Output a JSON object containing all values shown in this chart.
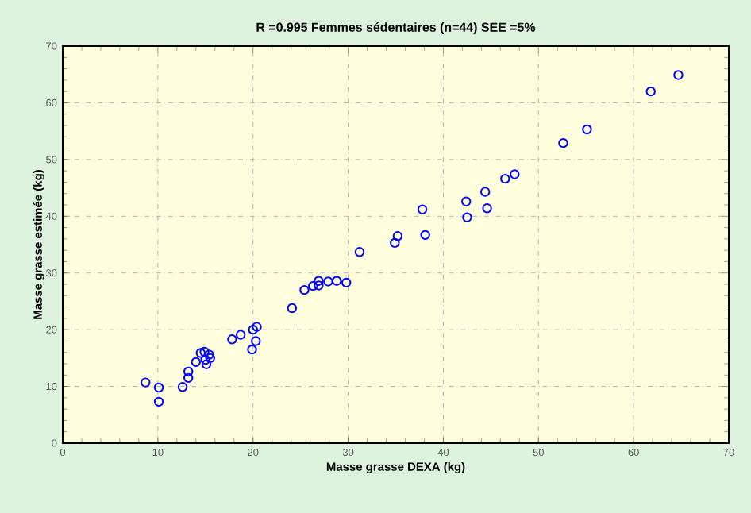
{
  "chart_data": {
    "type": "scatter",
    "title": "R =0.995  Femmes sédentaires (n=44)   SEE =5%",
    "xlabel": "Masse grasse DEXA (kg)",
    "ylabel": "Masse grasse estimée (kg)",
    "x": [
      8.7,
      10.1,
      10.1,
      12.6,
      13.2,
      13.2,
      14.0,
      14.5,
      14.9,
      15.0,
      15.1,
      15.4,
      15.5,
      17.8,
      18.7,
      20.0,
      20.4,
      20.3,
      19.9,
      24.1,
      25.4,
      26.3,
      26.9,
      26.9,
      27.9,
      28.8,
      29.8,
      31.2,
      34.9,
      35.2,
      38.1,
      37.8,
      42.5,
      42.4,
      44.6,
      44.4,
      46.5,
      47.5,
      52.6,
      55.1,
      61.8,
      64.7
    ],
    "values": [
      10.7,
      9.8,
      7.3,
      9.9,
      11.5,
      12.6,
      14.3,
      15.9,
      16.1,
      14.7,
      13.9,
      15.6,
      15.0,
      18.3,
      19.1,
      20.0,
      20.5,
      18.0,
      16.5,
      23.8,
      27.0,
      27.7,
      28.6,
      27.8,
      28.5,
      28.6,
      28.3,
      33.7,
      35.3,
      36.5,
      36.7,
      41.2,
      39.8,
      42.6,
      41.4,
      44.3,
      46.6,
      47.4,
      52.9,
      55.3,
      62.0,
      64.9
    ],
    "color": "#0000ff",
    "marker": "circle",
    "grid": true,
    "xlim": [
      0,
      70
    ],
    "ylim": [
      0,
      70
    ],
    "xticks": [
      0,
      10,
      20,
      30,
      40,
      50,
      60,
      70
    ],
    "yticks": [
      0,
      10,
      20,
      30,
      40,
      50,
      60,
      70
    ]
  }
}
